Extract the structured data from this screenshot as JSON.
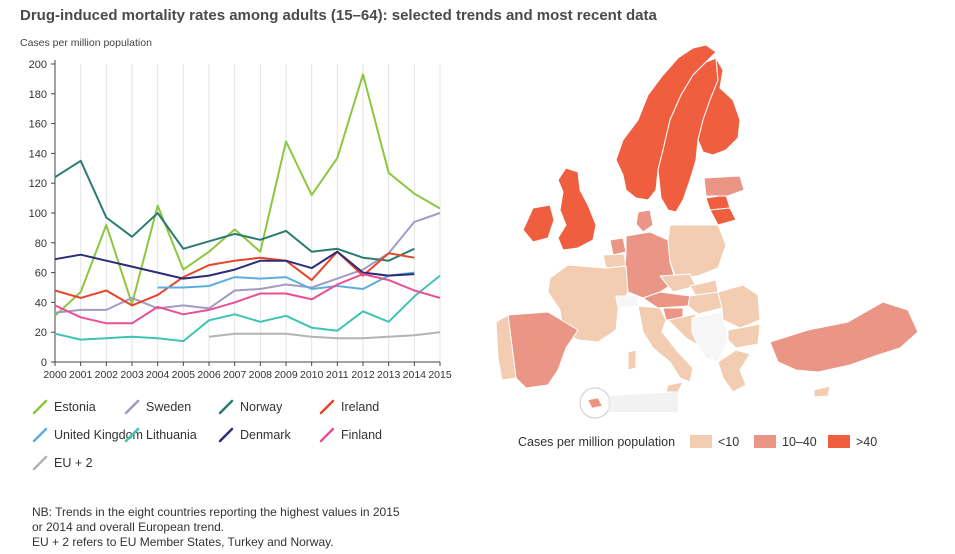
{
  "title": "Drug-induced mortality rates among adults (15–64): selected trends and most recent data",
  "ylabel": "Cases per million population",
  "chart_data": {
    "type": "line",
    "title": "Drug-induced mortality rates among adults (15–64): selected trends and most recent data",
    "ylabel": "Cases per million population",
    "xlabel": "",
    "x": [
      2000,
      2001,
      2002,
      2003,
      2004,
      2005,
      2006,
      2007,
      2008,
      2009,
      2010,
      2011,
      2012,
      2013,
      2014,
      2015
    ],
    "ylim": [
      0,
      200
    ],
    "yticks": [
      0,
      20,
      40,
      60,
      80,
      100,
      120,
      140,
      160,
      180,
      200
    ],
    "grid": "vertical",
    "legend_position": "bottom",
    "series": [
      {
        "name": "Estonia",
        "color": "#8dc63f",
        "values": [
          31,
          47,
          92,
          39,
          105,
          62,
          74,
          89,
          74,
          148,
          112,
          137,
          193,
          127,
          113,
          103
        ]
      },
      {
        "name": "Sweden",
        "color": "#a29bc4",
        "values": [
          33,
          35,
          35,
          43,
          36,
          38,
          36,
          48,
          49,
          52,
          50,
          56,
          62,
          73,
          94,
          100
        ]
      },
      {
        "name": "Norway",
        "color": "#2b7b72",
        "values": [
          124,
          135,
          97,
          84,
          100,
          76,
          81,
          86,
          82,
          88,
          74,
          76,
          70,
          68,
          76,
          null
        ]
      },
      {
        "name": "Ireland",
        "color": "#e8442a",
        "values": [
          48,
          43,
          48,
          38,
          45,
          57,
          65,
          68,
          70,
          68,
          55,
          74,
          58,
          73,
          70,
          null
        ]
      },
      {
        "name": "United Kingdom",
        "color": "#5baee0",
        "values": [
          null,
          null,
          null,
          null,
          50,
          50,
          51,
          57,
          56,
          57,
          49,
          51,
          49,
          58,
          60,
          null
        ]
      },
      {
        "name": "Lithuania",
        "color": "#3ec4b4",
        "values": [
          19,
          15,
          16,
          17,
          16,
          14,
          28,
          32,
          27,
          31,
          23,
          21,
          34,
          27,
          44,
          58
        ]
      },
      {
        "name": "Denmark",
        "color": "#2c2c7a",
        "values": [
          69,
          72,
          68,
          64,
          60,
          56,
          58,
          62,
          68,
          68,
          63,
          74,
          60,
          58,
          59,
          null
        ]
      },
      {
        "name": "Finland",
        "color": "#ea4f96",
        "values": [
          38,
          30,
          26,
          26,
          37,
          32,
          35,
          40,
          46,
          46,
          42,
          52,
          59,
          55,
          48,
          43
        ]
      },
      {
        "name": "EU + 2",
        "color": "#b3b3b3",
        "values": [
          null,
          null,
          null,
          null,
          null,
          null,
          17,
          19,
          19,
          19,
          17,
          16,
          16,
          17,
          18,
          20
        ]
      }
    ],
    "map": {
      "legend_title": "Cases per million population",
      "categories": [
        {
          "label": "<10",
          "color": "#f2cdb2"
        },
        {
          "label": "10–40",
          "color": "#ea9585"
        },
        {
          "label": ">40",
          "color": "#ef5f3f"
        }
      ]
    }
  },
  "note": {
    "lines": [
      "NB: Trends in the eight countries reporting the highest values in 2015",
      "or 2014 and overall European trend.",
      "EU + 2 refers to EU Member States, Turkey and Norway."
    ]
  },
  "colors": {
    "axis": "#444444",
    "grid": "#e3e3e3",
    "map_border": "#ffffff",
    "map_nodata": "#f6f6f6"
  }
}
